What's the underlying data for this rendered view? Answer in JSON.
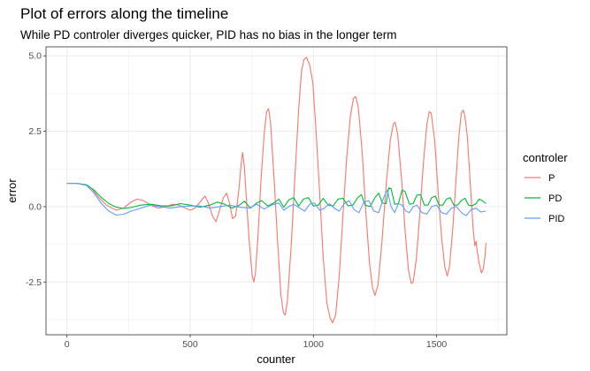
{
  "chart_data": {
    "type": "line",
    "title": "Plot of errors along the timeline",
    "subtitle": "While PD controler diverges quicker, PID has no bias in the longer term",
    "xlabel": "counter",
    "ylabel": "error",
    "xlim": [
      -85,
      1785
    ],
    "ylim": [
      -4.25,
      5.3
    ],
    "x_ticks": [
      0,
      500,
      1000,
      1500
    ],
    "x_tick_labels": [
      "0",
      "500",
      "1000",
      "1500"
    ],
    "y_ticks": [
      -2.5,
      0.0,
      2.5,
      5.0
    ],
    "y_tick_labels": [
      "-2.5",
      "0.0",
      "2.5",
      "5.0"
    ],
    "grid": true,
    "legend": {
      "title": "controler",
      "position": "right"
    },
    "series": [
      {
        "name": "P",
        "color": "#F8766D",
        "points": [
          [
            0,
            0.77
          ],
          [
            40,
            0.77
          ],
          [
            80,
            0.72
          ],
          [
            100,
            0.6
          ],
          [
            130,
            0.3
          ],
          [
            160,
            0.05
          ],
          [
            200,
            -0.12
          ],
          [
            230,
            -0.05
          ],
          [
            260,
            0.15
          ],
          [
            285,
            0.25
          ],
          [
            310,
            0.2
          ],
          [
            340,
            0.05
          ],
          [
            370,
            -0.05
          ],
          [
            400,
            0.0
          ],
          [
            430,
            0.08
          ],
          [
            455,
            0.05
          ],
          [
            480,
            -0.05
          ],
          [
            500,
            -0.12
          ],
          [
            520,
            -0.05
          ],
          [
            545,
            0.2
          ],
          [
            560,
            0.35
          ],
          [
            575,
            0.1
          ],
          [
            590,
            -0.3
          ],
          [
            605,
            -0.5
          ],
          [
            620,
            -0.1
          ],
          [
            635,
            0.3
          ],
          [
            648,
            0.45
          ],
          [
            660,
            0.1
          ],
          [
            672,
            -0.4
          ],
          [
            685,
            -0.3
          ],
          [
            698,
            0.6
          ],
          [
            708,
            1.5
          ],
          [
            713,
            1.8
          ],
          [
            720,
            1.3
          ],
          [
            730,
            0.0
          ],
          [
            740,
            -1.2
          ],
          [
            752,
            -2.3
          ],
          [
            758,
            -2.5
          ],
          [
            765,
            -2.2
          ],
          [
            775,
            -1.0
          ],
          [
            787,
            0.8
          ],
          [
            800,
            2.4
          ],
          [
            810,
            3.15
          ],
          [
            818,
            3.25
          ],
          [
            826,
            2.8
          ],
          [
            840,
            1.0
          ],
          [
            855,
            -1.2
          ],
          [
            868,
            -2.9
          ],
          [
            878,
            -3.5
          ],
          [
            886,
            -3.6
          ],
          [
            895,
            -3.1
          ],
          [
            910,
            -1.3
          ],
          [
            925,
            1.0
          ],
          [
            940,
            3.2
          ],
          [
            952,
            4.5
          ],
          [
            962,
            4.88
          ],
          [
            972,
            4.95
          ],
          [
            985,
            4.7
          ],
          [
            998,
            4.1
          ],
          [
            1010,
            2.6
          ],
          [
            1025,
            0.5
          ],
          [
            1040,
            -1.7
          ],
          [
            1055,
            -3.2
          ],
          [
            1068,
            -3.7
          ],
          [
            1078,
            -3.85
          ],
          [
            1090,
            -3.6
          ],
          [
            1105,
            -2.3
          ],
          [
            1120,
            -0.3
          ],
          [
            1135,
            1.6
          ],
          [
            1150,
            3.0
          ],
          [
            1163,
            3.6
          ],
          [
            1172,
            3.65
          ],
          [
            1182,
            3.3
          ],
          [
            1198,
            1.8
          ],
          [
            1213,
            -0.2
          ],
          [
            1228,
            -1.9
          ],
          [
            1240,
            -2.7
          ],
          [
            1250,
            -2.95
          ],
          [
            1262,
            -2.6
          ],
          [
            1278,
            -1.2
          ],
          [
            1295,
            0.7
          ],
          [
            1312,
            2.2
          ],
          [
            1325,
            2.75
          ],
          [
            1332,
            2.8
          ],
          [
            1342,
            2.4
          ],
          [
            1358,
            0.9
          ],
          [
            1373,
            -0.9
          ],
          [
            1386,
            -2.1
          ],
          [
            1397,
            -2.55
          ],
          [
            1405,
            -2.5
          ],
          [
            1418,
            -1.7
          ],
          [
            1432,
            -0.2
          ],
          [
            1447,
            1.5
          ],
          [
            1460,
            2.7
          ],
          [
            1470,
            3.15
          ],
          [
            1478,
            3.1
          ],
          [
            1492,
            2.2
          ],
          [
            1506,
            0.5
          ],
          [
            1520,
            -1.0
          ],
          [
            1533,
            -2.0
          ],
          [
            1543,
            -2.3
          ],
          [
            1552,
            -2.0
          ],
          [
            1565,
            -0.8
          ],
          [
            1578,
            0.8
          ],
          [
            1590,
            2.3
          ],
          [
            1600,
            3.1
          ],
          [
            1608,
            3.2
          ],
          [
            1615,
            3.0
          ],
          [
            1625,
            2.3
          ],
          [
            1638,
            0.6
          ],
          [
            1648,
            -0.7
          ],
          [
            1655,
            -1.3
          ],
          [
            1660,
            -1.15
          ],
          [
            1665,
            -1.5
          ],
          [
            1673,
            -1.9
          ],
          [
            1682,
            -2.2
          ],
          [
            1690,
            -2.05
          ],
          [
            1697,
            -1.6
          ],
          [
            1700,
            -1.2
          ]
        ]
      },
      {
        "name": "PD",
        "color": "#00BA38",
        "points": [
          [
            0,
            0.77
          ],
          [
            40,
            0.77
          ],
          [
            80,
            0.72
          ],
          [
            110,
            0.55
          ],
          [
            140,
            0.3
          ],
          [
            170,
            0.1
          ],
          [
            200,
            -0.02
          ],
          [
            230,
            -0.06
          ],
          [
            260,
            -0.03
          ],
          [
            300,
            0.05
          ],
          [
            340,
            0.08
          ],
          [
            380,
            0.03
          ],
          [
            420,
            0.02
          ],
          [
            460,
            0.1
          ],
          [
            500,
            0.05
          ],
          [
            540,
            -0.02
          ],
          [
            580,
            0.05
          ],
          [
            610,
            0.15
          ],
          [
            640,
            0.08
          ],
          [
            670,
            -0.05
          ],
          [
            700,
            0.05
          ],
          [
            720,
            0.18
          ],
          [
            745,
            -0.05
          ],
          [
            770,
            0.12
          ],
          [
            790,
            0.2
          ],
          [
            815,
            0.02
          ],
          [
            840,
            0.12
          ],
          [
            860,
            0.25
          ],
          [
            880,
            -0.02
          ],
          [
            900,
            0.22
          ],
          [
            920,
            0.3
          ],
          [
            940,
            0.02
          ],
          [
            960,
            0.25
          ],
          [
            980,
            0.3
          ],
          [
            1000,
            0.02
          ],
          [
            1020,
            0.05
          ],
          [
            1040,
            0.28
          ],
          [
            1060,
            0.05
          ],
          [
            1080,
            0.02
          ],
          [
            1100,
            0.25
          ],
          [
            1120,
            0.28
          ],
          [
            1140,
            0.03
          ],
          [
            1160,
            0.05
          ],
          [
            1180,
            0.3
          ],
          [
            1195,
            0.4
          ],
          [
            1210,
            0.05
          ],
          [
            1230,
            0.0
          ],
          [
            1250,
            0.3
          ],
          [
            1265,
            0.45
          ],
          [
            1280,
            0.12
          ],
          [
            1295,
            0.1
          ],
          [
            1305,
            0.62
          ],
          [
            1315,
            0.6
          ],
          [
            1330,
            0.08
          ],
          [
            1345,
            0.1
          ],
          [
            1360,
            0.55
          ],
          [
            1372,
            0.5
          ],
          [
            1390,
            0.08
          ],
          [
            1405,
            0.1
          ],
          [
            1420,
            0.38
          ],
          [
            1435,
            0.4
          ],
          [
            1450,
            0.05
          ],
          [
            1465,
            0.05
          ],
          [
            1480,
            0.3
          ],
          [
            1495,
            0.35
          ],
          [
            1510,
            0.05
          ],
          [
            1525,
            0.05
          ],
          [
            1540,
            0.25
          ],
          [
            1555,
            0.3
          ],
          [
            1570,
            0.05
          ],
          [
            1585,
            0.05
          ],
          [
            1600,
            0.2
          ],
          [
            1615,
            0.28
          ],
          [
            1630,
            0.05
          ],
          [
            1645,
            0.03
          ],
          [
            1660,
            0.1
          ],
          [
            1672,
            0.25
          ],
          [
            1685,
            0.2
          ],
          [
            1700,
            0.1
          ]
        ]
      },
      {
        "name": "PID",
        "color": "#619CFF",
        "points": [
          [
            0,
            0.77
          ],
          [
            40,
            0.77
          ],
          [
            80,
            0.7
          ],
          [
            110,
            0.45
          ],
          [
            140,
            0.1
          ],
          [
            170,
            -0.15
          ],
          [
            200,
            -0.28
          ],
          [
            230,
            -0.25
          ],
          [
            260,
            -0.15
          ],
          [
            300,
            -0.05
          ],
          [
            340,
            0.05
          ],
          [
            380,
            0.0
          ],
          [
            420,
            -0.05
          ],
          [
            460,
            0.0
          ],
          [
            500,
            0.02
          ],
          [
            540,
            0.02
          ],
          [
            580,
            -0.05
          ],
          [
            620,
            0.0
          ],
          [
            660,
            0.05
          ],
          [
            700,
            -0.02
          ],
          [
            740,
            -0.05
          ],
          [
            770,
            0.08
          ],
          [
            800,
            -0.08
          ],
          [
            830,
            0.05
          ],
          [
            860,
            0.12
          ],
          [
            880,
            -0.12
          ],
          [
            900,
            0.0
          ],
          [
            920,
            0.08
          ],
          [
            945,
            -0.05
          ],
          [
            965,
            -0.15
          ],
          [
            985,
            0.08
          ],
          [
            1005,
            0.12
          ],
          [
            1025,
            -0.12
          ],
          [
            1045,
            -0.05
          ],
          [
            1065,
            0.1
          ],
          [
            1085,
            -0.05
          ],
          [
            1105,
            -0.15
          ],
          [
            1125,
            0.1
          ],
          [
            1145,
            0.2
          ],
          [
            1165,
            -0.1
          ],
          [
            1185,
            -0.2
          ],
          [
            1205,
            0.15
          ],
          [
            1225,
            0.2
          ],
          [
            1245,
            -0.15
          ],
          [
            1265,
            -0.2
          ],
          [
            1285,
            0.3
          ],
          [
            1300,
            0.55
          ],
          [
            1315,
            0.0
          ],
          [
            1330,
            -0.2
          ],
          [
            1345,
            0.1
          ],
          [
            1360,
            0.05
          ],
          [
            1375,
            -0.15
          ],
          [
            1390,
            -0.2
          ],
          [
            1405,
            0.0
          ],
          [
            1420,
            0.05
          ],
          [
            1440,
            -0.2
          ],
          [
            1460,
            -0.25
          ],
          [
            1480,
            0.0
          ],
          [
            1500,
            0.05
          ],
          [
            1520,
            -0.2
          ],
          [
            1540,
            -0.25
          ],
          [
            1560,
            -0.05
          ],
          [
            1580,
            0.0
          ],
          [
            1600,
            -0.2
          ],
          [
            1620,
            -0.3
          ],
          [
            1640,
            -0.1
          ],
          [
            1660,
            -0.05
          ],
          [
            1680,
            -0.18
          ],
          [
            1700,
            -0.15
          ]
        ]
      }
    ]
  }
}
